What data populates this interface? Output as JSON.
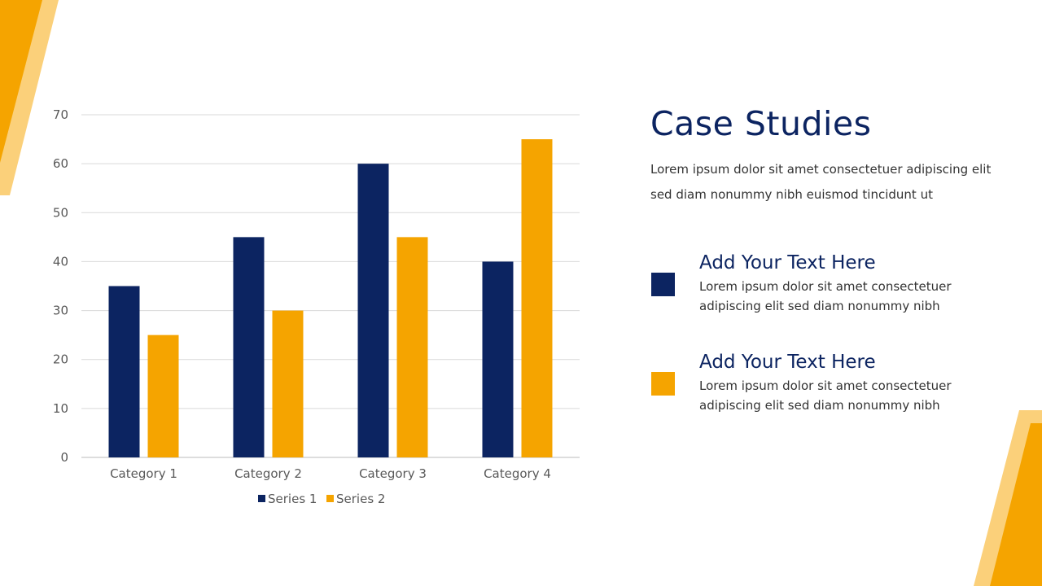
{
  "colors": {
    "navy": "#0c2461",
    "orange": "#f5a400",
    "light_orange": "#fbd07a"
  },
  "chart_data": {
    "type": "bar",
    "categories": [
      "Category 1",
      "Category 2",
      "Category 3",
      "Category 4"
    ],
    "series": [
      {
        "name": "Series 1",
        "values": [
          35,
          45,
          60,
          40
        ],
        "color": "#0c2461"
      },
      {
        "name": "Series 2",
        "values": [
          25,
          30,
          45,
          65
        ],
        "color": "#f5a400"
      }
    ],
    "ylim": [
      0,
      70
    ],
    "yticks": [
      0,
      10,
      20,
      30,
      40,
      50,
      60,
      70
    ],
    "grid": true,
    "legend": "bottom"
  },
  "heading": "Case Studies",
  "description": "Lorem ipsum dolor sit amet consectetuer adipiscing elit sed diam nonummy nibh euismod tincidunt ut",
  "items": [
    {
      "title": "Add Your Text Here",
      "text": "Lorem ipsum dolor sit amet consectetuer adipiscing elit sed diam nonummy nibh",
      "color": "#0c2461"
    },
    {
      "title": "Add Your Text Here",
      "text": "Lorem ipsum dolor sit amet consectetuer adipiscing elit sed diam nonummy nibh",
      "color": "#f5a400"
    }
  ]
}
